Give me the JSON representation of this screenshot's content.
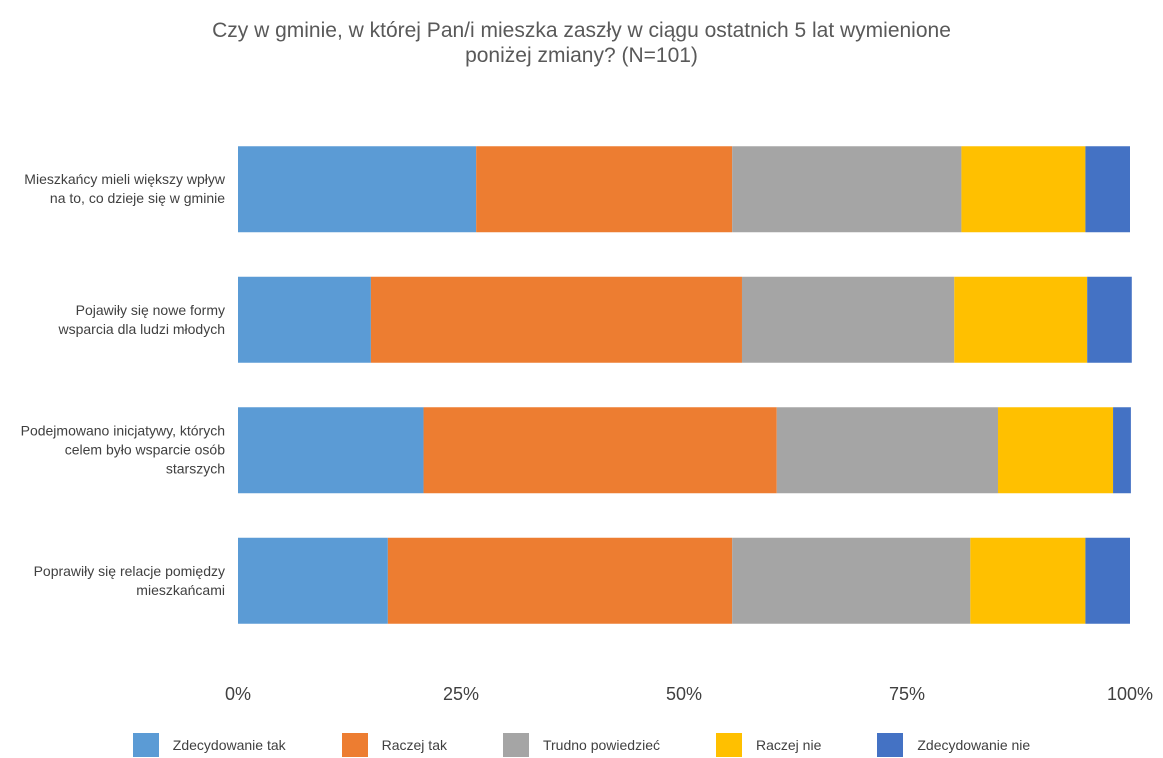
{
  "chart_data": {
    "type": "stacked_barh",
    "title": "Czy w gminie, w której Pan/i mieszka zaszły w ciągu ostatnich 5 lat wymienione poniżej zmiany? (N=101)",
    "categories": [
      "Mieszkańcy mieli większy wpływ na to, co dzieje się w gminie",
      "Pojawiły się nowe formy wsparcia dla ludzi młodych",
      "Podejmowano inicjatywy, których celem było wsparcie osób starszych",
      "Poprawiły się relacje pomiędzy mieszkańcami"
    ],
    "series": [
      {
        "name": "Zdecydowanie tak",
        "color": "#5b9bd5",
        "values": [
          26.7,
          14.9,
          20.8,
          16.8
        ]
      },
      {
        "name": "Raczej tak",
        "color": "#ed7d31",
        "values": [
          28.7,
          41.6,
          39.6,
          38.6
        ]
      },
      {
        "name": "Trudno powiedzieć",
        "color": "#a5a5a5",
        "values": [
          25.7,
          23.8,
          24.8,
          26.7
        ]
      },
      {
        "name": "Raczej nie",
        "color": "#ffc000",
        "values": [
          13.9,
          14.9,
          12.9,
          12.9
        ]
      },
      {
        "name": "Zdecydowanie nie",
        "color": "#4472c4",
        "values": [
          5.0,
          5.0,
          2.0,
          5.0
        ]
      }
    ],
    "xlim": [
      0,
      100
    ],
    "xticks": [
      {
        "value": 0,
        "label": "0%"
      },
      {
        "value": 25,
        "label": "25%"
      },
      {
        "value": 50,
        "label": "50%"
      },
      {
        "value": 75,
        "label": "75%"
      },
      {
        "value": 100,
        "label": "100%"
      }
    ],
    "grid": false,
    "legend": "bottom"
  }
}
